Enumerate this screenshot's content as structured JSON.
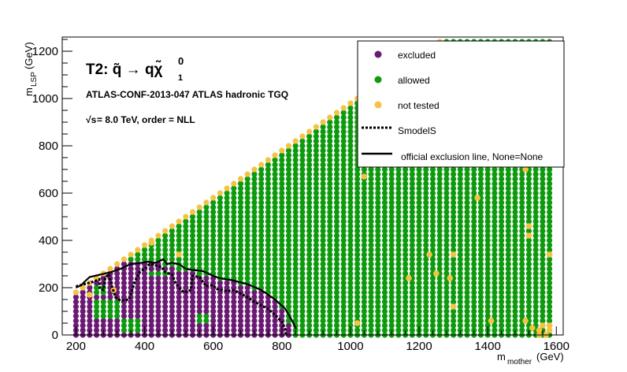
{
  "chart_data": {
    "type": "scatter",
    "title": "T2: q̃ → qχ̃",
    "title_superscript": "0",
    "title_subscript": "1",
    "subtitle": "ATLAS-CONF-2013-047  ATLAS hadronic TGQ",
    "energy_prefix": "√s",
    "energy_label": " =  8.0 TeV, order =  NLL",
    "xlabel": "m",
    "xlabel_sub": "mother",
    "xlabel_unit": " (GeV)",
    "ylabel": "m",
    "ylabel_sub": "LSP",
    "ylabel_unit": " (GeV)",
    "xlim": [
      160,
      1620
    ],
    "ylim": [
      0,
      1260
    ],
    "xticks": [
      200,
      400,
      600,
      800,
      1000,
      1200,
      1400,
      1600
    ],
    "yticks": [
      0,
      200,
      400,
      600,
      800,
      1000,
      1200
    ],
    "grid": false,
    "legend_position": "top-right",
    "colors": {
      "excluded": "#6b1a73",
      "allowed": "#0e9a0e",
      "not_tested": "#f5c242",
      "lines": "#000000"
    },
    "legend": [
      {
        "label": "excluded",
        "kind": "marker",
        "color": "#6b1a73"
      },
      {
        "label": "allowed",
        "kind": "marker",
        "color": "#0e9a0e"
      },
      {
        "label": "not tested",
        "kind": "marker",
        "color": "#f5c242"
      },
      {
        "label": "SmodelS",
        "kind": "dashed"
      },
      {
        "label": "official exclusion line, None=None",
        "kind": "solid"
      }
    ],
    "grid_points": {
      "x_start": 200,
      "x_end": 1580,
      "x_step": 20,
      "y_start": 0,
      "y_step": 20,
      "diagonal_offset": 20
    },
    "excluded_region": [
      [
        200,
        0
      ],
      [
        200,
        200
      ],
      [
        240,
        250
      ],
      [
        300,
        300
      ],
      [
        380,
        320
      ],
      [
        460,
        300
      ],
      [
        520,
        270
      ],
      [
        580,
        250
      ],
      [
        660,
        230
      ],
      [
        740,
        190
      ],
      [
        800,
        120
      ],
      [
        830,
        30
      ],
      [
        830,
        0
      ]
    ],
    "allowed_islands": [
      [
        260,
        80,
        60,
        60
      ],
      [
        260,
        180,
        30,
        30
      ],
      [
        420,
        250,
        40,
        20
      ],
      [
        340,
        20,
        40,
        40
      ],
      [
        560,
        60,
        30,
        20
      ]
    ],
    "not_tested_points": [
      [
        1040,
        670
      ],
      [
        1170,
        240
      ],
      [
        1230,
        340
      ],
      [
        1250,
        260
      ],
      [
        1290,
        240
      ],
      [
        1300,
        340
      ],
      [
        1370,
        580
      ],
      [
        1300,
        120
      ],
      [
        1410,
        60
      ],
      [
        1510,
        700
      ],
      [
        1520,
        420
      ],
      [
        1520,
        460
      ],
      [
        1580,
        340
      ],
      [
        1510,
        60
      ],
      [
        1530,
        30
      ],
      [
        1550,
        20
      ],
      [
        1560,
        40
      ],
      [
        1580,
        40
      ],
      [
        1580,
        20
      ],
      [
        1570,
        0
      ],
      [
        1550,
        0
      ],
      [
        1020,
        50
      ],
      [
        420,
        390
      ],
      [
        500,
        340
      ],
      [
        310,
        190
      ],
      [
        240,
        170
      ]
    ],
    "smodels_line": [
      [
        200,
        205
      ],
      [
        225,
        215
      ],
      [
        250,
        225
      ],
      [
        268,
        235
      ],
      [
        270,
        195
      ],
      [
        280,
        190
      ],
      [
        285,
        240
      ],
      [
        295,
        258
      ],
      [
        305,
        205
      ],
      [
        315,
        160
      ],
      [
        330,
        145
      ],
      [
        355,
        150
      ],
      [
        370,
        220
      ],
      [
        385,
        265
      ],
      [
        400,
        280
      ],
      [
        415,
        300
      ],
      [
        430,
        295
      ],
      [
        440,
        290
      ],
      [
        450,
        288
      ],
      [
        460,
        265
      ],
      [
        480,
        255
      ],
      [
        490,
        220
      ],
      [
        500,
        200
      ],
      [
        515,
        180
      ],
      [
        535,
        190
      ],
      [
        540,
        250
      ],
      [
        560,
        245
      ],
      [
        580,
        205
      ],
      [
        590,
        210
      ],
      [
        600,
        210
      ],
      [
        610,
        195
      ],
      [
        640,
        185
      ],
      [
        660,
        190
      ],
      [
        680,
        175
      ],
      [
        700,
        160
      ],
      [
        720,
        140
      ],
      [
        740,
        125
      ],
      [
        760,
        110
      ],
      [
        780,
        85
      ],
      [
        800,
        55
      ],
      [
        810,
        25
      ],
      [
        812,
        0
      ]
    ],
    "official_line": [
      [
        200,
        200
      ],
      [
        215,
        210
      ],
      [
        225,
        225
      ],
      [
        240,
        245
      ],
      [
        270,
        255
      ],
      [
        300,
        265
      ],
      [
        330,
        280
      ],
      [
        360,
        300
      ],
      [
        390,
        305
      ],
      [
        410,
        310
      ],
      [
        430,
        305
      ],
      [
        440,
        310
      ],
      [
        455,
        320
      ],
      [
        465,
        300
      ],
      [
        480,
        305
      ],
      [
        500,
        300
      ],
      [
        520,
        280
      ],
      [
        540,
        275
      ],
      [
        570,
        270
      ],
      [
        600,
        250
      ],
      [
        620,
        240
      ],
      [
        660,
        230
      ],
      [
        700,
        215
      ],
      [
        740,
        190
      ],
      [
        780,
        150
      ],
      [
        810,
        110
      ],
      [
        830,
        60
      ],
      [
        842,
        25
      ]
    ]
  }
}
